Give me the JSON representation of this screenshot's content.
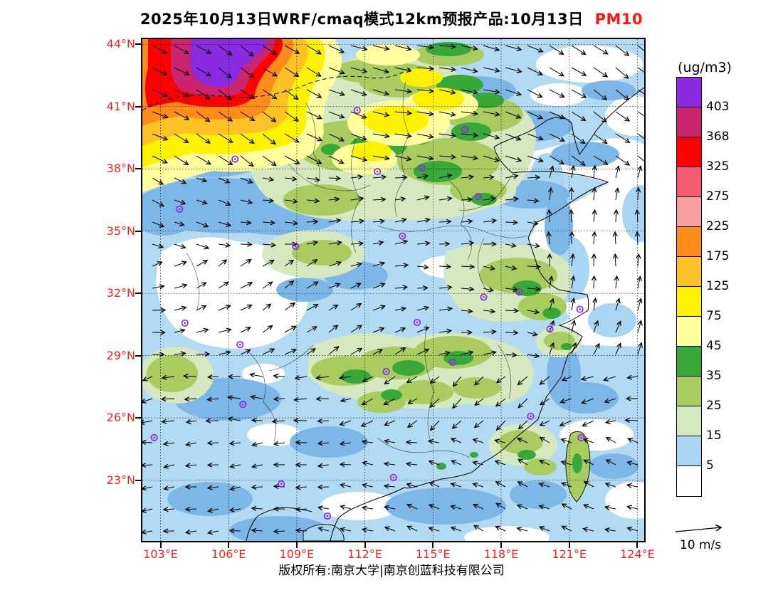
{
  "title": {
    "main": "2025年10月13日WRF/cmaq模式12km预报产品:10月13日",
    "species": "PM10",
    "species_color": "#fb1515"
  },
  "axes": {
    "lat_labels": [
      "44°N",
      "41°N",
      "38°N",
      "35°N",
      "32°N",
      "29°N",
      "26°N",
      "23°N"
    ],
    "lat_values": [
      44,
      41,
      38,
      35,
      32,
      29,
      26,
      23
    ],
    "lon_labels": [
      "103°E",
      "106°E",
      "109°E",
      "112°E",
      "115°E",
      "118°E",
      "121°E",
      "124°E"
    ],
    "lon_values": [
      103,
      106,
      109,
      112,
      115,
      118,
      121,
      124
    ],
    "label_color": "#fa2020"
  },
  "map": {
    "extent": {
      "lon_min": 102.2,
      "lon_max": 124.3,
      "lat_min": 20.07,
      "lat_max": 44.25
    },
    "marker_color": "#8a2be2",
    "city_markers_lon_lat": [
      [
        111.66,
        40.82
      ],
      [
        106.28,
        38.47
      ],
      [
        103.84,
        36.06
      ],
      [
        112.55,
        37.87
      ],
      [
        116.4,
        39.9
      ],
      [
        114.5,
        38.04
      ],
      [
        117.0,
        36.67
      ],
      [
        113.65,
        34.76
      ],
      [
        108.95,
        34.27
      ],
      [
        117.23,
        31.82
      ],
      [
        118.8,
        32.06
      ],
      [
        121.47,
        31.23
      ],
      [
        120.15,
        30.28
      ],
      [
        114.3,
        30.6
      ],
      [
        112.94,
        28.23
      ],
      [
        115.86,
        28.68
      ],
      [
        106.5,
        29.53
      ],
      [
        104.07,
        30.57
      ],
      [
        106.63,
        26.65
      ],
      [
        102.72,
        25.05
      ],
      [
        119.3,
        26.08
      ],
      [
        121.52,
        25.04
      ],
      [
        113.26,
        23.13
      ],
      [
        108.32,
        22.82
      ],
      [
        110.35,
        21.27
      ]
    ]
  },
  "colorbar": {
    "units": "(ug/m3)",
    "tick_labels": [
      "403",
      "368",
      "325",
      "275",
      "225",
      "175",
      "125",
      "75",
      "45",
      "35",
      "25",
      "15",
      "5"
    ],
    "colors_top_to_bottom": [
      "#8a2be2",
      "#c9256e",
      "#fe0000",
      "#f45a70",
      "#f8a0a0",
      "#ff8c1a",
      "#ffc226",
      "#fff200",
      "#ffff9e",
      "#38a838",
      "#a8cc60",
      "#d6e8c0",
      "#a8d5f2",
      "#ffffff"
    ]
  },
  "wind_legend": {
    "label": "10 m/s"
  },
  "footer": {
    "copyright": "版权所有:南京大学|南京创蓝科技有限公司"
  }
}
